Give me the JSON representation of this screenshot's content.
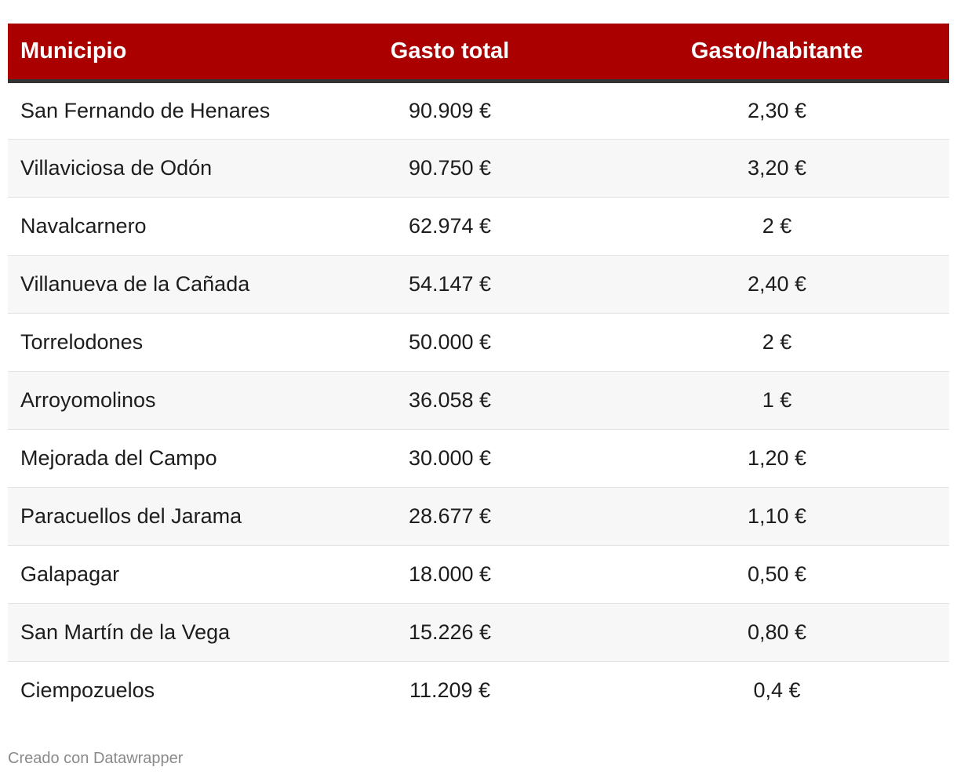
{
  "chart_data": {
    "type": "table",
    "columns": [
      "Municipio",
      "Gasto total",
      "Gasto/habitante"
    ],
    "rows": [
      [
        "San Fernando de Henares",
        "90.909 €",
        "2,30 €"
      ],
      [
        "Villaviciosa de Odón",
        "90.750 €",
        "3,20 €"
      ],
      [
        "Navalcarnero",
        "62.974 €",
        "2 €"
      ],
      [
        "Villanueva de la Cañada",
        "54.147 €",
        "2,40 €"
      ],
      [
        "Torrelodones",
        "50.000 €",
        "2 €"
      ],
      [
        "Arroyomolinos",
        "36.058 €",
        "1 €"
      ],
      [
        "Mejorada del Campo",
        "30.000 €",
        "1,20 €"
      ],
      [
        "Paracuellos del Jarama",
        "28.677 €",
        "1,10 €"
      ],
      [
        "Galapagar",
        "18.000 €",
        "0,50 €"
      ],
      [
        "San Martín de la Vega",
        "15.226 €",
        "0,80 €"
      ],
      [
        "Ciempozuelos",
        "11.209 €",
        "0,4 €"
      ]
    ],
    "header_color": "#aa0000",
    "stripe_color": "#f7f7f7"
  },
  "footer": {
    "credit": "Creado con Datawrapper"
  }
}
